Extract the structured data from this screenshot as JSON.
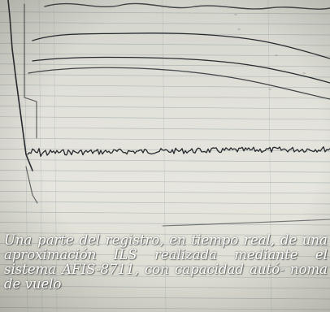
{
  "caption": "Una parte del registro, en tiempo real, de una aproximación ILS realizada mediante el sistema AFIS-8711, con capacidad autó- noma de vuelo",
  "colors": {
    "paper": "#e2e2da",
    "grid": "#8e9a9e",
    "trace": "#26282e",
    "caption_text": "#ffffff"
  }
}
